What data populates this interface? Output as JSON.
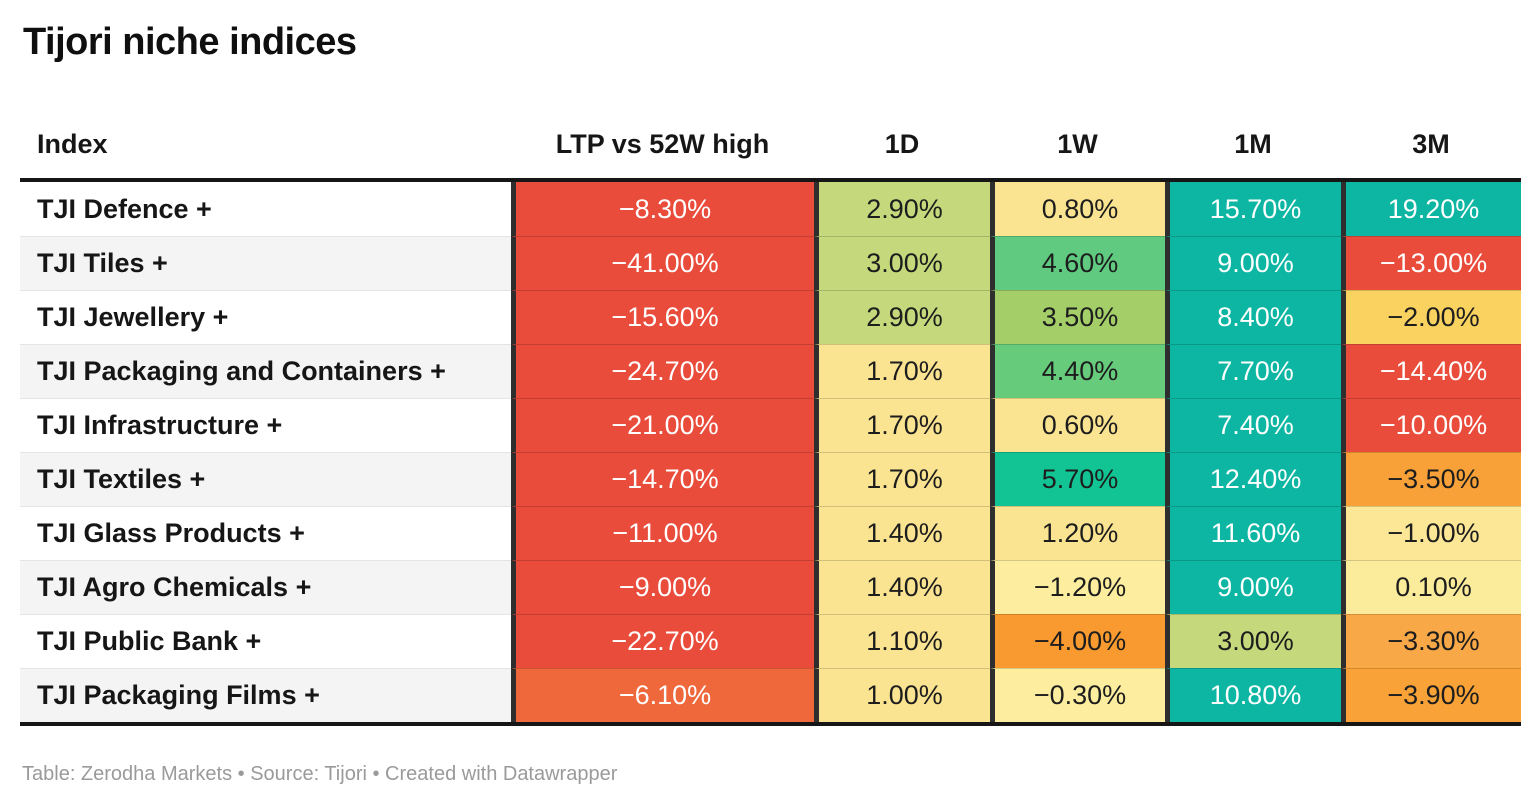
{
  "title": "Tijori niche indices",
  "footer": "Table: Zerodha Markets • Source: Tijori • Created with Datawrapper",
  "palette": {
    "negative_red": "#e94c3b",
    "negative_orange_red": "#ee683c",
    "negative_orange": "#f89a2f",
    "negative_light_orange": "#f9a847",
    "negative_gold": "#f9d25f",
    "neutral_pale_yellow": "#fbe491",
    "neutral_cream": "#fcee9e",
    "positive_yellow_green": "#c5d87b",
    "positive_green": "#5fca80",
    "positive_teal_green": "#12c494",
    "positive_teal": "#0cb6a2",
    "text_dark": "#1d1d1d",
    "text_light": "#ffffff"
  },
  "chart_data": {
    "type": "table",
    "title": "Tijori niche indices",
    "heatmap": true,
    "columns": [
      "Index",
      "LTP vs 52W high",
      "1D",
      "1W",
      "1M",
      "3M"
    ],
    "column_keys": [
      "index",
      "ltp-vs-52w-high",
      "1d",
      "1w",
      "1m",
      "3m"
    ],
    "rows": [
      {
        "index": "TJI Defence +",
        "cells": [
          {
            "value": "−8.30%",
            "bg": "#e94c3b",
            "fg": "#ffffff"
          },
          {
            "value": "2.90%",
            "bg": "#c5d87b",
            "fg": "#1d1d1d"
          },
          {
            "value": "0.80%",
            "bg": "#fbe491",
            "fg": "#1d1d1d"
          },
          {
            "value": "15.70%",
            "bg": "#0cb6a2",
            "fg": "#ffffff"
          },
          {
            "value": "19.20%",
            "bg": "#0cb6a2",
            "fg": "#ffffff"
          }
        ]
      },
      {
        "index": "TJI Tiles +",
        "cells": [
          {
            "value": "−41.00%",
            "bg": "#e94c3b",
            "fg": "#ffffff"
          },
          {
            "value": "3.00%",
            "bg": "#c5d87b",
            "fg": "#1d1d1d"
          },
          {
            "value": "4.60%",
            "bg": "#5fca80",
            "fg": "#1d1d1d"
          },
          {
            "value": "9.00%",
            "bg": "#0cb6a2",
            "fg": "#ffffff"
          },
          {
            "value": "−13.00%",
            "bg": "#e94c3b",
            "fg": "#ffffff"
          }
        ]
      },
      {
        "index": "TJI Jewellery +",
        "cells": [
          {
            "value": "−15.60%",
            "bg": "#e94c3b",
            "fg": "#ffffff"
          },
          {
            "value": "2.90%",
            "bg": "#c5d87b",
            "fg": "#1d1d1d"
          },
          {
            "value": "3.50%",
            "bg": "#a4cf68",
            "fg": "#1d1d1d"
          },
          {
            "value": "8.40%",
            "bg": "#0cb6a2",
            "fg": "#ffffff"
          },
          {
            "value": "−2.00%",
            "bg": "#f9d25f",
            "fg": "#1d1d1d"
          }
        ]
      },
      {
        "index": "TJI Packaging and Containers +",
        "cells": [
          {
            "value": "−24.70%",
            "bg": "#e94c3b",
            "fg": "#ffffff"
          },
          {
            "value": "1.70%",
            "bg": "#fbe491",
            "fg": "#1d1d1d"
          },
          {
            "value": "4.40%",
            "bg": "#67cb7c",
            "fg": "#1d1d1d"
          },
          {
            "value": "7.70%",
            "bg": "#0cb6a2",
            "fg": "#ffffff"
          },
          {
            "value": "−14.40%",
            "bg": "#e94c3b",
            "fg": "#ffffff"
          }
        ]
      },
      {
        "index": "TJI Infrastructure +",
        "cells": [
          {
            "value": "−21.00%",
            "bg": "#e94c3b",
            "fg": "#ffffff"
          },
          {
            "value": "1.70%",
            "bg": "#fbe491",
            "fg": "#1d1d1d"
          },
          {
            "value": "0.60%",
            "bg": "#fbe491",
            "fg": "#1d1d1d"
          },
          {
            "value": "7.40%",
            "bg": "#0cb6a2",
            "fg": "#ffffff"
          },
          {
            "value": "−10.00%",
            "bg": "#e94c3b",
            "fg": "#ffffff"
          }
        ]
      },
      {
        "index": "TJI Textiles +",
        "cells": [
          {
            "value": "−14.70%",
            "bg": "#e94c3b",
            "fg": "#ffffff"
          },
          {
            "value": "1.70%",
            "bg": "#fbe491",
            "fg": "#1d1d1d"
          },
          {
            "value": "5.70%",
            "bg": "#12c494",
            "fg": "#1d1d1d"
          },
          {
            "value": "12.40%",
            "bg": "#0cb6a2",
            "fg": "#ffffff"
          },
          {
            "value": "−3.50%",
            "bg": "#f8a138",
            "fg": "#1d1d1d"
          }
        ]
      },
      {
        "index": "TJI Glass Products +",
        "cells": [
          {
            "value": "−11.00%",
            "bg": "#e94c3b",
            "fg": "#ffffff"
          },
          {
            "value": "1.40%",
            "bg": "#fbe491",
            "fg": "#1d1d1d"
          },
          {
            "value": "1.20%",
            "bg": "#fbe491",
            "fg": "#1d1d1d"
          },
          {
            "value": "11.60%",
            "bg": "#0cb6a2",
            "fg": "#ffffff"
          },
          {
            "value": "−1.00%",
            "bg": "#fbe795",
            "fg": "#1d1d1d"
          }
        ]
      },
      {
        "index": "TJI Agro Chemicals +",
        "cells": [
          {
            "value": "−9.00%",
            "bg": "#e94c3b",
            "fg": "#ffffff"
          },
          {
            "value": "1.40%",
            "bg": "#fbe491",
            "fg": "#1d1d1d"
          },
          {
            "value": "−1.20%",
            "bg": "#fcee9e",
            "fg": "#1d1d1d"
          },
          {
            "value": "9.00%",
            "bg": "#0cb6a2",
            "fg": "#ffffff"
          },
          {
            "value": "0.10%",
            "bg": "#fbec9b",
            "fg": "#1d1d1d"
          }
        ]
      },
      {
        "index": "TJI Public Bank +",
        "cells": [
          {
            "value": "−22.70%",
            "bg": "#e94c3b",
            "fg": "#ffffff"
          },
          {
            "value": "1.10%",
            "bg": "#fbe491",
            "fg": "#1d1d1d"
          },
          {
            "value": "−4.00%",
            "bg": "#f89a2f",
            "fg": "#1d1d1d"
          },
          {
            "value": "3.00%",
            "bg": "#c5d87b",
            "fg": "#1d1d1d"
          },
          {
            "value": "−3.30%",
            "bg": "#f9a847",
            "fg": "#1d1d1d"
          }
        ]
      },
      {
        "index": "TJI Packaging Films +",
        "cells": [
          {
            "value": "−6.10%",
            "bg": "#ee683c",
            "fg": "#ffffff"
          },
          {
            "value": "1.00%",
            "bg": "#fbe491",
            "fg": "#1d1d1d"
          },
          {
            "value": "−0.30%",
            "bg": "#fcee9e",
            "fg": "#1d1d1d"
          },
          {
            "value": "10.80%",
            "bg": "#0cb6a2",
            "fg": "#ffffff"
          },
          {
            "value": "−3.90%",
            "bg": "#f8a238",
            "fg": "#1d1d1d"
          }
        ]
      }
    ]
  }
}
